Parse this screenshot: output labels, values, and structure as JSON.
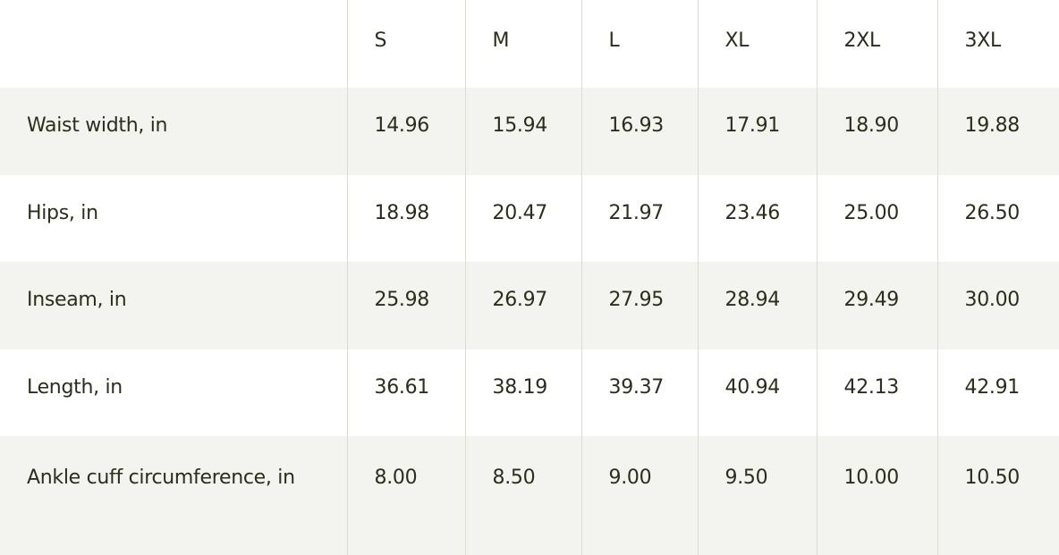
{
  "headers": [
    "",
    "S",
    "M",
    "L",
    "XL",
    "2XL",
    "3XL"
  ],
  "rows": [
    {
      "label": "Waist width, in",
      "values": [
        "14.96",
        "15.94",
        "16.93",
        "17.91",
        "18.90",
        "19.88"
      ]
    },
    {
      "label": "Hips, in",
      "values": [
        "18.98",
        "20.47",
        "21.97",
        "23.46",
        "25.00",
        "26.50"
      ]
    },
    {
      "label": "Inseam, in",
      "values": [
        "25.98",
        "26.97",
        "27.95",
        "28.94",
        "29.49",
        "30.00"
      ]
    },
    {
      "label": "Length, in",
      "values": [
        "36.61",
        "38.19",
        "39.37",
        "40.94",
        "42.13",
        "42.91"
      ]
    },
    {
      "label": "Ankle cuff circumference, in",
      "values": [
        "8.00",
        "8.50",
        "9.00",
        "9.50",
        "10.00",
        "10.50"
      ]
    }
  ],
  "colors": {
    "text": "#2b2e1a",
    "stripe": "#f3f4ef",
    "border": "#dcdcd2"
  }
}
